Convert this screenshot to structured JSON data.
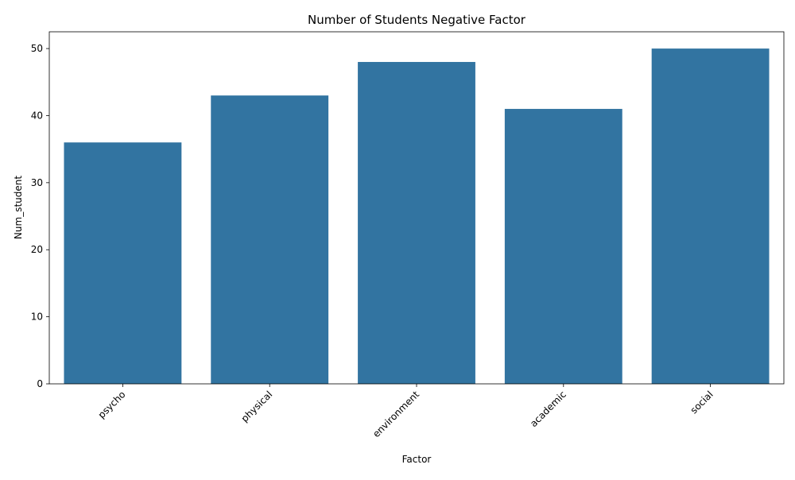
{
  "chart_data": {
    "type": "bar",
    "title": "Number of Students Negative Factor",
    "xlabel": "Factor",
    "ylabel": "Num_student",
    "categories": [
      "psycho",
      "physical",
      "environment",
      "academic",
      "social"
    ],
    "values": [
      36,
      43,
      48,
      41,
      50
    ],
    "ylim": [
      0,
      52.5
    ],
    "yticks": [
      0,
      10,
      20,
      30,
      40,
      50
    ],
    "x_tick_rotation_deg": 45,
    "bar_color": "#3274a1",
    "grid": false
  }
}
